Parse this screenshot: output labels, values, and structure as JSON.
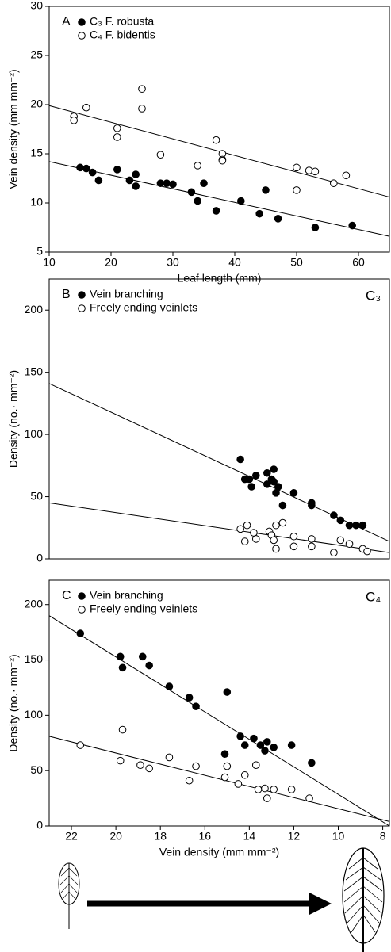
{
  "chart_data": [
    {
      "type": "scatter",
      "panel_label": "A",
      "x_label": "Leaf length (mm)",
      "y_label": "Vein density (mm mm⁻²)",
      "xlim": [
        10,
        65
      ],
      "xticks": [
        10,
        20,
        30,
        40,
        50,
        60
      ],
      "ylim": [
        5,
        30
      ],
      "yticks": [
        5,
        10,
        15,
        20,
        25,
        30
      ],
      "series": [
        {
          "name": "C₃ F. robusta",
          "marker": "filled",
          "color": "#000000",
          "x": [
            15,
            16,
            17,
            18,
            21,
            23,
            24,
            24,
            28,
            29,
            30,
            33,
            34,
            35,
            37,
            41,
            44,
            45,
            47,
            53,
            59
          ],
          "values": [
            13.6,
            13.5,
            13.1,
            12.3,
            13.4,
            12.3,
            12.9,
            11.7,
            12.0,
            12.0,
            11.9,
            11.1,
            10.2,
            12.0,
            9.2,
            10.2,
            8.9,
            11.3,
            8.4,
            7.5,
            7.7
          ],
          "trend": {
            "x": [
              10,
              65
            ],
            "y": [
              14.2,
              6.6
            ]
          }
        },
        {
          "name": "C₄ F. bidentis",
          "marker": "open",
          "color": "#000000",
          "x": [
            14,
            14,
            16,
            21,
            21,
            25,
            25,
            28,
            34,
            37,
            38,
            38,
            38,
            50,
            50,
            52,
            53,
            56,
            58
          ],
          "values": [
            18.8,
            18.4,
            19.7,
            17.6,
            16.7,
            21.6,
            19.6,
            14.9,
            13.8,
            16.4,
            15.0,
            14.4,
            14.3,
            13.6,
            11.3,
            13.3,
            13.2,
            12.0,
            12.8
          ],
          "trend": {
            "x": [
              10,
              65
            ],
            "y": [
              19.9,
              10.6
            ]
          }
        }
      ]
    },
    {
      "type": "scatter",
      "panel_label": "B",
      "corner_label": "C₃",
      "y_label": "Density (no.· mm⁻²)",
      "xlim": [
        23,
        7.7
      ],
      "ylim": [
        0,
        225
      ],
      "yticks": [
        0,
        50,
        100,
        150,
        200
      ],
      "series": [
        {
          "name": "Vein branching",
          "marker": "filled",
          "color": "#000000",
          "x": [
            14.4,
            14.2,
            14.0,
            13.9,
            13.7,
            13.2,
            13.2,
            13.0,
            12.9,
            12.9,
            12.8,
            12.7,
            12.5,
            12.0,
            11.2,
            11.2,
            10.2,
            9.9,
            9.5,
            9.2,
            8.9
          ],
          "values": [
            80,
            64,
            64,
            58,
            67,
            69,
            60,
            64,
            62,
            72,
            53,
            58,
            43,
            53,
            45,
            43,
            35,
            31,
            27,
            27,
            27
          ],
          "trend": {
            "x": [
              23,
              7.7
            ],
            "y": [
              141,
              14
            ]
          }
        },
        {
          "name": "Freely ending veinlets",
          "marker": "open",
          "color": "#000000",
          "x": [
            14.4,
            14.2,
            14.1,
            13.8,
            13.7,
            13.1,
            13.0,
            12.9,
            12.8,
            12.8,
            12.5,
            12.0,
            12.0,
            11.2,
            11.2,
            10.2,
            9.9,
            9.5,
            8.9,
            8.7
          ],
          "values": [
            24,
            14,
            27,
            21,
            16,
            22,
            19,
            15,
            27,
            8,
            29,
            18,
            10,
            16,
            10,
            5,
            15,
            12,
            8,
            6
          ],
          "trend": {
            "x": [
              23,
              7.7
            ],
            "y": [
              45,
              5
            ]
          }
        }
      ]
    },
    {
      "type": "scatter",
      "panel_label": "C",
      "corner_label": "C₄",
      "x_label": "Vein density (mm mm⁻²)",
      "y_label": "Density (no.· mm⁻²)",
      "xlim": [
        23,
        7.7
      ],
      "xticks": [
        22,
        20,
        18,
        16,
        14,
        12,
        10,
        8
      ],
      "ylim": [
        0,
        222
      ],
      "yticks": [
        0,
        50,
        100,
        150,
        200
      ],
      "series": [
        {
          "name": "Vein branching",
          "marker": "filled",
          "color": "#000000",
          "x": [
            21.6,
            19.8,
            19.7,
            18.8,
            18.5,
            17.6,
            16.7,
            16.4,
            15.0,
            14.4,
            14.2,
            13.8,
            13.5,
            13.3,
            13.2,
            12.9,
            15.1,
            12.1,
            11.2
          ],
          "values": [
            174,
            153,
            143,
            153,
            145,
            126,
            116,
            108,
            121,
            81,
            73,
            79,
            73,
            68,
            76,
            71,
            65,
            73,
            57
          ],
          "trend": {
            "x": [
              23,
              7.7
            ],
            "y": [
              190,
              0
            ]
          }
        },
        {
          "name": "Freely ending veinlets",
          "marker": "open",
          "color": "#000000",
          "x": [
            21.6,
            19.8,
            19.7,
            18.9,
            18.5,
            17.6,
            16.7,
            16.4,
            15.1,
            15.0,
            14.5,
            14.2,
            13.7,
            13.6,
            13.3,
            13.2,
            12.9,
            12.1,
            11.3
          ],
          "values": [
            73,
            59,
            87,
            55,
            52,
            62,
            41,
            54,
            44,
            54,
            38,
            46,
            55,
            33,
            34,
            25,
            33,
            33,
            25
          ],
          "trend": {
            "x": [
              23,
              7.7
            ],
            "y": [
              81,
              4
            ]
          }
        }
      ]
    }
  ]
}
